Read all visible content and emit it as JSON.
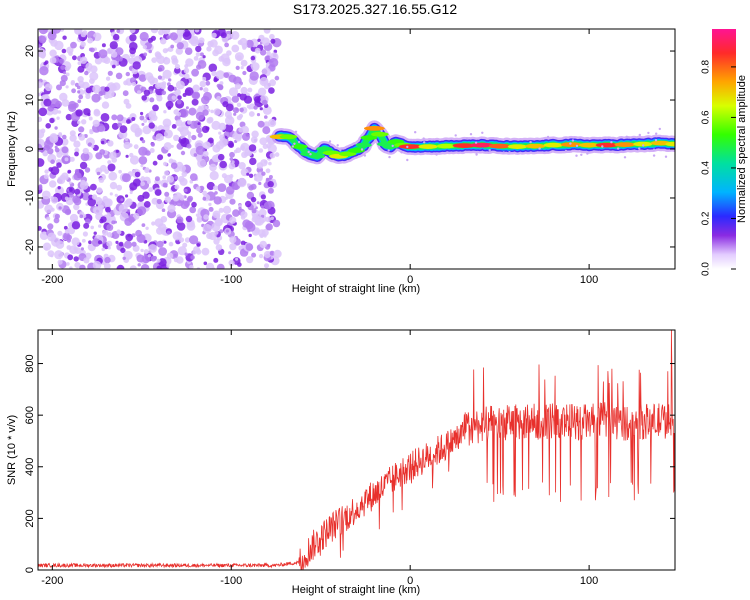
{
  "figure_title": "S173.2025.327.16.55.G12",
  "colors": {
    "snr_line": "#e8302c",
    "noise_dot": "#8a2be2",
    "axis": "#000000"
  },
  "chart_data": [
    {
      "type": "heatmap",
      "title": "S173.2025.327.16.55.G12",
      "xlabel": "Height of straight line (km)",
      "ylabel": "Frequency (Hz)",
      "xlim": [
        -208,
        148
      ],
      "ylim": [
        -24.5,
        24.5
      ],
      "xticks": [
        -200,
        -100,
        0,
        100
      ],
      "yticks": [
        -20,
        -10,
        0,
        10,
        20
      ],
      "noise_region_x": [
        -208,
        -74
      ],
      "signal_trace": {
        "x": [
          -73,
          -68,
          -62,
          -57,
          -52,
          -48,
          -44,
          -40,
          -35,
          -30,
          -26,
          -23,
          -20,
          -17,
          -14,
          -11,
          -8,
          -4,
          0,
          10,
          20,
          30,
          40,
          50,
          60,
          70,
          80,
          90,
          100,
          110,
          120,
          130,
          140,
          148
        ],
        "y": [
          2.5,
          2.5,
          0.5,
          -1.0,
          -1.5,
          0.0,
          -0.8,
          -1.5,
          -1.0,
          -0.3,
          0.8,
          2.3,
          4.2,
          3.0,
          1.0,
          0.5,
          1.5,
          0.8,
          0.5,
          0.5,
          0.6,
          0.7,
          0.8,
          0.6,
          0.5,
          0.6,
          0.8,
          0.9,
          0.8,
          0.8,
          0.9,
          1.0,
          1.2,
          1.0
        ],
        "amplitude": [
          0.75,
          0.6,
          0.55,
          0.5,
          0.5,
          0.5,
          0.6,
          0.7,
          0.6,
          0.55,
          0.5,
          0.55,
          0.8,
          0.6,
          0.5,
          0.5,
          0.55,
          0.6,
          0.9,
          0.7,
          0.65,
          0.9,
          0.95,
          0.85,
          0.7,
          0.75,
          0.7,
          0.8,
          0.75,
          0.9,
          0.8,
          0.7,
          0.75,
          0.7
        ]
      },
      "colorbar": {
        "label": "Normalized spectral amplitude",
        "range": [
          0.0,
          0.95
        ],
        "ticks": [
          0.0,
          0.2,
          0.4,
          0.6,
          0.8
        ]
      }
    },
    {
      "type": "line",
      "xlabel": "Height of straight line (km)",
      "ylabel": "SNR (10 * v/v)",
      "xlim": [
        -208,
        148
      ],
      "ylim": [
        0,
        930
      ],
      "xticks": [
        -200,
        -100,
        0,
        100
      ],
      "yticks": [
        0,
        200,
        400,
        600,
        800
      ],
      "envelope": {
        "x": [
          -208,
          -100,
          -75,
          -62,
          -55,
          -45,
          -35,
          -25,
          -15,
          -5,
          0,
          10,
          20,
          30,
          40,
          50,
          60,
          70,
          80,
          90,
          100,
          110,
          120,
          130,
          140,
          148
        ],
        "y": [
          18,
          18,
          18,
          30,
          90,
          160,
          210,
          270,
          320,
          380,
          400,
          440,
          480,
          530,
          550,
          555,
          560,
          560,
          565,
          560,
          560,
          570,
          555,
          560,
          565,
          560
        ]
      },
      "spike": {
        "x": 146,
        "y": 930
      }
    }
  ]
}
